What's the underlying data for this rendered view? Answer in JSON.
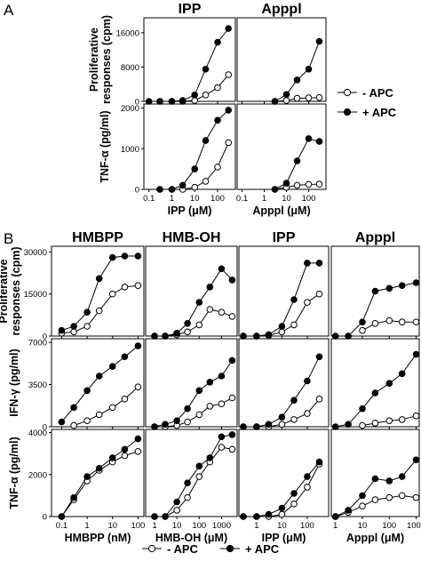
{
  "panel_a": {
    "letter": "A"
  },
  "panel_b": {
    "letter": "B"
  },
  "legend": {
    "minus_apc": "- APC",
    "plus_apc": "+ APC"
  },
  "colors": {
    "ink": "#000000",
    "open_fill": "#ffffff",
    "axis": "#000000"
  },
  "chart_data": [
    {
      "type": "line",
      "panel": "A",
      "title": "IPP",
      "ylabel": "Proliferative responses (cpm)",
      "xlabel": "",
      "xscale": "log",
      "xlim": [
        0.06,
        600
      ],
      "ylim": [
        0,
        19500
      ],
      "x_ticks": [
        "0.1",
        "1",
        "10",
        "100"
      ],
      "y_ticks": [
        0,
        8000,
        16000
      ],
      "series": [
        {
          "name": "- APC",
          "marker": "open",
          "x": [
            0.3,
            1,
            3,
            10,
            30,
            100,
            300
          ],
          "y": [
            0,
            0,
            0,
            200,
            1500,
            3200,
            6200
          ]
        },
        {
          "name": "+ APC",
          "marker": "filled",
          "x": [
            0.1,
            0.3,
            1,
            3,
            10,
            30,
            100,
            300
          ],
          "y": [
            0,
            0,
            0,
            200,
            1500,
            7500,
            13800,
            17000
          ]
        }
      ]
    },
    {
      "type": "line",
      "panel": "A",
      "title": "Apppl",
      "xlabel": "",
      "xscale": "log",
      "xlim": [
        0.06,
        600
      ],
      "ylim": [
        0,
        19500
      ],
      "x_ticks": [],
      "y_ticks": [],
      "series": [
        {
          "name": "- APC",
          "marker": "open",
          "x": [
            3,
            10,
            30,
            100,
            300
          ],
          "y": [
            0,
            200,
            700,
            800,
            900
          ]
        },
        {
          "name": "+ APC",
          "marker": "filled",
          "x": [
            3,
            10,
            30,
            100,
            300
          ],
          "y": [
            0,
            1600,
            5000,
            7500,
            14000
          ]
        }
      ]
    },
    {
      "type": "line",
      "panel": "A",
      "title": "",
      "ylabel": "TNF-α (pg/ml)",
      "xlabel": "IPP (μM)",
      "xscale": "log",
      "xlim": [
        0.06,
        600
      ],
      "ylim": [
        0,
        2100
      ],
      "x_ticks": [
        "0.1",
        "1",
        "10",
        "100"
      ],
      "y_ticks": [
        0,
        1000,
        2000
      ],
      "series": [
        {
          "name": "- APC",
          "marker": "open",
          "x": [
            0.3,
            1,
            3,
            10,
            30,
            100,
            300
          ],
          "y": [
            0,
            0,
            0,
            50,
            200,
            550,
            1150
          ]
        },
        {
          "name": "+ APC",
          "marker": "filled",
          "x": [
            0.3,
            1,
            3,
            10,
            30,
            100,
            300
          ],
          "y": [
            0,
            0,
            100,
            500,
            1200,
            1700,
            1950
          ]
        }
      ]
    },
    {
      "type": "line",
      "panel": "A",
      "title": "",
      "xlabel": "Apppl (μM)",
      "xscale": "log",
      "xlim": [
        0.06,
        600
      ],
      "ylim": [
        0,
        2100
      ],
      "x_ticks": [],
      "y_ticks": [],
      "series": [
        {
          "name": "- APC",
          "marker": "open",
          "x": [
            3,
            10,
            30,
            100,
            300
          ],
          "y": [
            0,
            50,
            100,
            120,
            130
          ]
        },
        {
          "name": "+ APC",
          "marker": "filled",
          "x": [
            3,
            10,
            30,
            100,
            300
          ],
          "y": [
            0,
            150,
            700,
            1250,
            1180
          ]
        }
      ]
    },
    {
      "type": "line",
      "panel": "B",
      "title": "HMBPP",
      "ylabel": "Proliferative responses (cpm)",
      "xlabel": "",
      "xscale": "log",
      "xlim": [
        0.04,
        170
      ],
      "ylim": [
        0,
        32000
      ],
      "x_ticks": [
        "0.1",
        "1",
        "10",
        "100"
      ],
      "y_ticks": [
        0,
        15000,
        30000
      ],
      "series": [
        {
          "name": "- APC",
          "marker": "open",
          "x": [
            0.1,
            0.3,
            1,
            3,
            10,
            30,
            100
          ],
          "y": [
            1000,
            1500,
            3500,
            9000,
            15000,
            17500,
            18000
          ]
        },
        {
          "name": "+ APC",
          "marker": "filled",
          "x": [
            0.1,
            0.3,
            1,
            3,
            10,
            30,
            100
          ],
          "y": [
            2000,
            3500,
            8500,
            20500,
            28000,
            28500,
            28500
          ]
        }
      ]
    },
    {
      "type": "line",
      "panel": "B",
      "title": "HMB-OH",
      "xlabel": "",
      "xscale": "log",
      "xlim": [
        0.4,
        5000
      ],
      "ylim": [
        0,
        32000
      ],
      "x_ticks": [],
      "y_ticks": [],
      "series": [
        {
          "name": "- APC",
          "marker": "open",
          "x": [
            1,
            3,
            10,
            30,
            100,
            300,
            1000,
            3000
          ],
          "y": [
            0,
            0,
            500,
            1500,
            4000,
            9500,
            8500,
            7000
          ]
        },
        {
          "name": "+ APC",
          "marker": "filled",
          "x": [
            1,
            3,
            10,
            30,
            100,
            300,
            1000,
            3000
          ],
          "y": [
            0,
            0,
            1000,
            4500,
            12000,
            17500,
            24000,
            20000
          ]
        }
      ]
    },
    {
      "type": "line",
      "panel": "B",
      "title": "IPP",
      "xlabel": "",
      "xscale": "log",
      "xlim": [
        0.2,
        700
      ],
      "ylim": [
        0,
        32000
      ],
      "x_ticks": [],
      "y_ticks": [],
      "series": [
        {
          "name": "- APC",
          "marker": "open",
          "x": [
            0.3,
            1,
            3,
            10,
            30,
            100,
            300
          ],
          "y": [
            0,
            0,
            200,
            1500,
            4000,
            12000,
            15000
          ]
        },
        {
          "name": "+ APC",
          "marker": "filled",
          "x": [
            0.3,
            1,
            3,
            10,
            30,
            100,
            300
          ],
          "y": [
            0,
            0,
            500,
            3500,
            13000,
            26000,
            26000
          ]
        }
      ]
    },
    {
      "type": "line",
      "panel": "B",
      "title": "Apppl",
      "xlabel": "",
      "xscale": "log",
      "xlim": [
        0.7,
        1300
      ],
      "ylim": [
        0,
        32000
      ],
      "x_ticks": [],
      "y_ticks": [],
      "series": [
        {
          "name": "- APC",
          "marker": "open",
          "x": [
            10,
            30,
            100,
            300,
            1000
          ],
          "y": [
            2000,
            4500,
            5500,
            5000,
            5000
          ]
        },
        {
          "name": "+ APC",
          "marker": "filled",
          "x": [
            1,
            3,
            10,
            30,
            100,
            300,
            1000
          ],
          "y": [
            0,
            0,
            5000,
            16000,
            17000,
            18000,
            19000
          ]
        }
      ]
    },
    {
      "type": "line",
      "panel": "B",
      "title": "",
      "ylabel": "IFN-γ (pg/ml)",
      "xlabel": "",
      "xscale": "log",
      "xlim": [
        0.04,
        170
      ],
      "ylim": [
        0,
        7300
      ],
      "x_ticks": [
        "0.1",
        "1",
        "10",
        "100"
      ],
      "y_ticks": [
        0,
        3500,
        7000
      ],
      "series": [
        {
          "name": "- APC",
          "marker": "open",
          "x": [
            0.3,
            1,
            3,
            10,
            30,
            100
          ],
          "y": [
            100,
            500,
            1000,
            1600,
            2300,
            3300
          ]
        },
        {
          "name": "+ APC",
          "marker": "filled",
          "x": [
            0.1,
            0.3,
            1,
            3,
            10,
            30,
            100
          ],
          "y": [
            400,
            1600,
            3000,
            4200,
            5000,
            5800,
            6700
          ]
        }
      ]
    },
    {
      "type": "line",
      "panel": "B",
      "title": "",
      "xlabel": "",
      "xscale": "log",
      "xlim": [
        0.4,
        5000
      ],
      "ylim": [
        0,
        7300
      ],
      "x_ticks": [],
      "y_ticks": [],
      "series": [
        {
          "name": "- APC",
          "marker": "open",
          "x": [
            1,
            3,
            10,
            30,
            100,
            300,
            1000,
            3000
          ],
          "y": [
            0,
            0,
            100,
            400,
            1000,
            1700,
            1900,
            2400
          ]
        },
        {
          "name": "+ APC",
          "marker": "filled",
          "x": [
            1,
            3,
            10,
            30,
            100,
            300,
            1000,
            3000
          ],
          "y": [
            0,
            200,
            500,
            1500,
            3000,
            3700,
            4200,
            5500
          ]
        }
      ]
    },
    {
      "type": "line",
      "panel": "B",
      "title": "",
      "xlabel": "",
      "xscale": "log",
      "xlim": [
        0.2,
        700
      ],
      "ylim": [
        0,
        7300
      ],
      "x_ticks": [],
      "y_ticks": [],
      "series": [
        {
          "name": "- APC",
          "marker": "open",
          "x": [
            0.3,
            1,
            3,
            10,
            30,
            100,
            300
          ],
          "y": [
            0,
            0,
            0,
            200,
            600,
            1100,
            2300
          ]
        },
        {
          "name": "+ APC",
          "marker": "filled",
          "x": [
            0.3,
            1,
            3,
            10,
            30,
            100,
            300
          ],
          "y": [
            0,
            0,
            200,
            800,
            2200,
            3800,
            5800
          ]
        }
      ]
    },
    {
      "type": "line",
      "panel": "B",
      "title": "",
      "xlabel": "",
      "xscale": "log",
      "xlim": [
        0.7,
        1300
      ],
      "ylim": [
        0,
        7300
      ],
      "x_ticks": [],
      "y_ticks": [],
      "series": [
        {
          "name": "- APC",
          "marker": "open",
          "x": [
            10,
            30,
            100,
            300,
            1000
          ],
          "y": [
            100,
            300,
            500,
            600,
            900
          ]
        },
        {
          "name": "+ APC",
          "marker": "filled",
          "x": [
            1,
            3,
            10,
            30,
            100,
            300,
            1000
          ],
          "y": [
            0,
            200,
            1500,
            2800,
            3600,
            4400,
            6000
          ]
        }
      ]
    },
    {
      "type": "line",
      "panel": "B",
      "title": "",
      "ylabel": "TNF-α (pg/ml)",
      "xlabel": "HMBPP (nM)",
      "xscale": "log",
      "xlim": [
        0.04,
        170
      ],
      "ylim": [
        0,
        4150
      ],
      "x_ticks": [
        "0.1",
        "1",
        "10",
        "100"
      ],
      "y_ticks": [
        0,
        2000,
        4000
      ],
      "series": [
        {
          "name": "- APC",
          "marker": "open",
          "x": [
            0.1,
            0.3,
            1,
            3,
            10,
            30,
            100
          ],
          "y": [
            0,
            800,
            1700,
            2200,
            2600,
            2900,
            3100
          ]
        },
        {
          "name": "+ APC",
          "marker": "filled",
          "x": [
            0.1,
            0.3,
            1,
            3,
            10,
            30,
            100
          ],
          "y": [
            0,
            900,
            1900,
            2300,
            2800,
            3200,
            3700
          ]
        }
      ]
    },
    {
      "type": "line",
      "panel": "B",
      "title": "",
      "xlabel": "HMB-OH (μM)",
      "xscale": "log",
      "xlim": [
        0.4,
        5000
      ],
      "ylim": [
        0,
        4150
      ],
      "x_ticks": [],
      "y_ticks": [],
      "series": [
        {
          "name": "- APC",
          "marker": "open",
          "x": [
            1,
            3,
            10,
            30,
            100,
            300,
            1000,
            3000
          ],
          "y": [
            0,
            0,
            300,
            900,
            1900,
            2600,
            3300,
            3200
          ]
        },
        {
          "name": "+ APC",
          "marker": "filled",
          "x": [
            1,
            3,
            10,
            30,
            100,
            300,
            1000,
            3000
          ],
          "y": [
            0,
            0,
            700,
            1600,
            2400,
            2800,
            3800,
            3900
          ]
        }
      ]
    },
    {
      "type": "line",
      "panel": "B",
      "title": "",
      "xlabel": "IPP (μM)",
      "xscale": "log",
      "xlim": [
        0.2,
        700
      ],
      "ylim": [
        0,
        4150
      ],
      "x_ticks": [],
      "y_ticks": [],
      "series": [
        {
          "name": "- APC",
          "marker": "open",
          "x": [
            0.3,
            1,
            3,
            10,
            30,
            100,
            300
          ],
          "y": [
            0,
            0,
            0,
            100,
            600,
            1400,
            2500
          ]
        },
        {
          "name": "+ APC",
          "marker": "filled",
          "x": [
            0.3,
            1,
            3,
            10,
            30,
            100,
            300
          ],
          "y": [
            0,
            0,
            100,
            400,
            1100,
            1900,
            2600
          ]
        }
      ]
    },
    {
      "type": "line",
      "panel": "B",
      "title": "",
      "xlabel": "Apppl (μM)",
      "xscale": "log",
      "xlim": [
        0.7,
        1300
      ],
      "ylim": [
        0,
        4150
      ],
      "x_ticks": [],
      "y_ticks": [],
      "series": [
        {
          "name": "- APC",
          "marker": "open",
          "x": [
            1,
            3,
            10,
            30,
            100,
            300,
            1000
          ],
          "y": [
            0,
            200,
            500,
            800,
            900,
            1000,
            900
          ]
        },
        {
          "name": "+ APC",
          "marker": "filled",
          "x": [
            1,
            3,
            10,
            30,
            100,
            300,
            1000
          ],
          "y": [
            0,
            300,
            1000,
            1800,
            1700,
            1900,
            2700
          ]
        }
      ]
    }
  ]
}
